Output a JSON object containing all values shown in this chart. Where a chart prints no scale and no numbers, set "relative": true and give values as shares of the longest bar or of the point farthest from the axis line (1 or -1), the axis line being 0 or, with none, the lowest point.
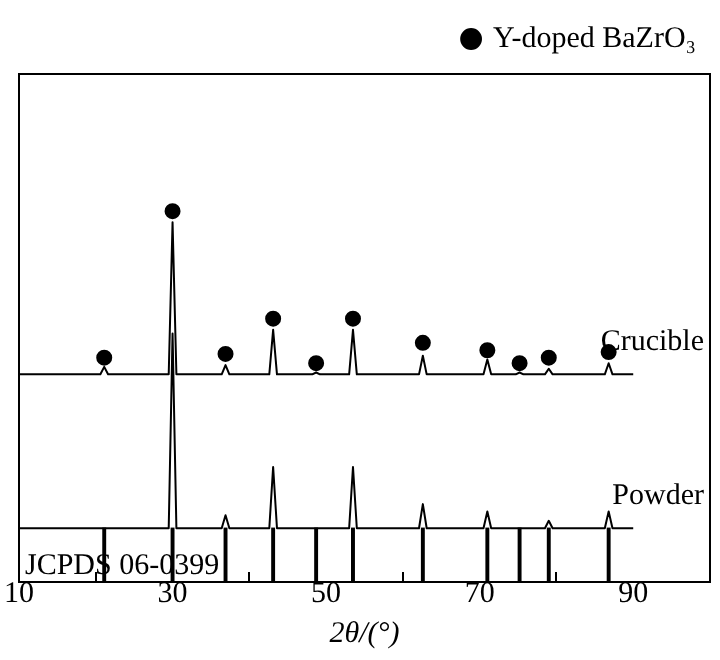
{
  "chart_data": {
    "type": "line",
    "relative": true,
    "xlabel": "2θ/(°)",
    "xlim": [
      10,
      100
    ],
    "xticks": [
      10,
      30,
      50,
      70,
      90
    ],
    "grid": false,
    "legend": "top right",
    "marker": "none",
    "line_style": "solid",
    "annotations": [
      "JCPDS 06-0399"
    ],
    "series": [
      {
        "name": "Crucible",
        "color": "#000000",
        "x": [
          10,
          20.6,
          21.1,
          21.6,
          29.5,
          30.0,
          30.5,
          36.4,
          36.9,
          37.4,
          42.6,
          43.1,
          43.6,
          48.2,
          48.7,
          49.2,
          53.0,
          53.5,
          54.0,
          62.1,
          62.6,
          63.1,
          70.5,
          71.0,
          71.5,
          74.7,
          75.2,
          75.7,
          78.5,
          79.0,
          79.5,
          86.3,
          86.8,
          87.3,
          90
        ],
        "values": [
          0.56,
          0.56,
          0.58,
          0.56,
          0.56,
          0.97,
          0.56,
          0.56,
          0.585,
          0.56,
          0.56,
          0.68,
          0.56,
          0.56,
          0.565,
          0.56,
          0.56,
          0.68,
          0.56,
          0.56,
          0.61,
          0.56,
          0.56,
          0.6,
          0.56,
          0.56,
          0.565,
          0.56,
          0.56,
          0.575,
          0.56,
          0.56,
          0.59,
          0.56,
          0.56
        ]
      },
      {
        "name": "Powder",
        "color": "#000000",
        "x": [
          10,
          29.5,
          30.0,
          30.5,
          36.4,
          36.9,
          37.4,
          42.6,
          43.1,
          43.6,
          53.0,
          53.5,
          54.0,
          62.1,
          62.6,
          63.1,
          70.5,
          71.0,
          71.5,
          78.5,
          79.0,
          79.5,
          86.3,
          86.8,
          87.3,
          90
        ],
        "values": [
          0.145,
          0.145,
          0.67,
          0.145,
          0.145,
          0.18,
          0.145,
          0.145,
          0.31,
          0.145,
          0.145,
          0.31,
          0.145,
          0.145,
          0.21,
          0.145,
          0.145,
          0.19,
          0.145,
          0.145,
          0.165,
          0.145,
          0.145,
          0.19,
          0.145,
          0.145
        ]
      },
      {
        "type": "bar",
        "color": "#000000",
        "x": [
          21.1,
          30.0,
          36.9,
          43.1,
          48.7,
          53.5,
          62.6,
          71.0,
          75.2,
          79.0,
          86.8
        ],
        "values": [
          0.145,
          0.145,
          0.145,
          0.145,
          0.145,
          0.145,
          0.145,
          0.145,
          0.145,
          0.145,
          0.145
        ]
      },
      {
        "name": "Y-doped BaZrO₃",
        "type": "scatter",
        "marker": "circle",
        "color": "#000000",
        "x": [
          21.1,
          30.0,
          36.9,
          43.1,
          48.7,
          53.5,
          62.6,
          71.0,
          75.2,
          79.0,
          86.8
        ],
        "values": [
          0.605,
          1.0,
          0.615,
          0.71,
          0.59,
          0.71,
          0.645,
          0.625,
          0.59,
          0.605,
          0.62
        ]
      }
    ]
  }
}
